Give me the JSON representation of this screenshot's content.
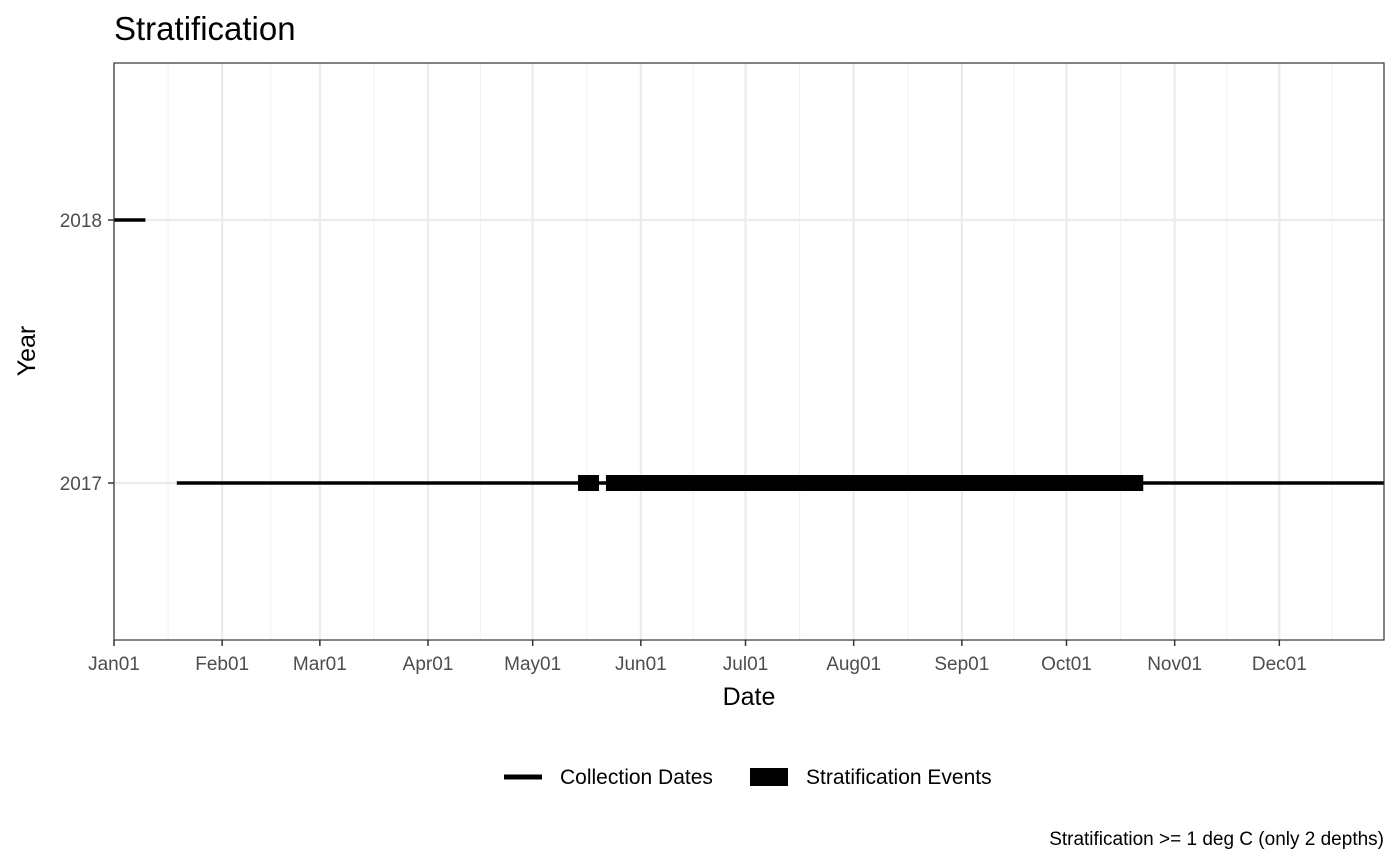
{
  "chart_data": {
    "type": "timeline",
    "title": "Stratification",
    "xlabel": "Date",
    "ylabel": "Year",
    "caption": "Stratification >= 1 deg C (only 2 depths)",
    "x_ticks": [
      "Jan01",
      "Feb01",
      "Mar01",
      "Apr01",
      "May01",
      "Jun01",
      "Jul01",
      "Aug01",
      "Sep01",
      "Oct01",
      "Nov01",
      "Dec01"
    ],
    "xlim": [
      "Jan01",
      "Dec31"
    ],
    "y_categories": [
      "2017",
      "2018"
    ],
    "grid": true,
    "legend_position": "bottom",
    "legend": [
      {
        "label": "Collection Dates",
        "style": "line"
      },
      {
        "label": "Stratification Events",
        "style": "bar"
      }
    ],
    "collection_dates": [
      {
        "year": "2017",
        "start": "Jan19",
        "end": "Dec31"
      },
      {
        "year": "2018",
        "start": "Jan01",
        "end": "Jan10"
      }
    ],
    "stratification_events": [
      {
        "year": "2017",
        "start": "May14",
        "end": "May20"
      },
      {
        "year": "2017",
        "start": "May22",
        "end": "Oct23"
      }
    ],
    "colors": {
      "line": "#000000",
      "panel_border": "#333333",
      "grid_major": "#ebebeb",
      "tick_text": "#4d4d4d"
    }
  }
}
